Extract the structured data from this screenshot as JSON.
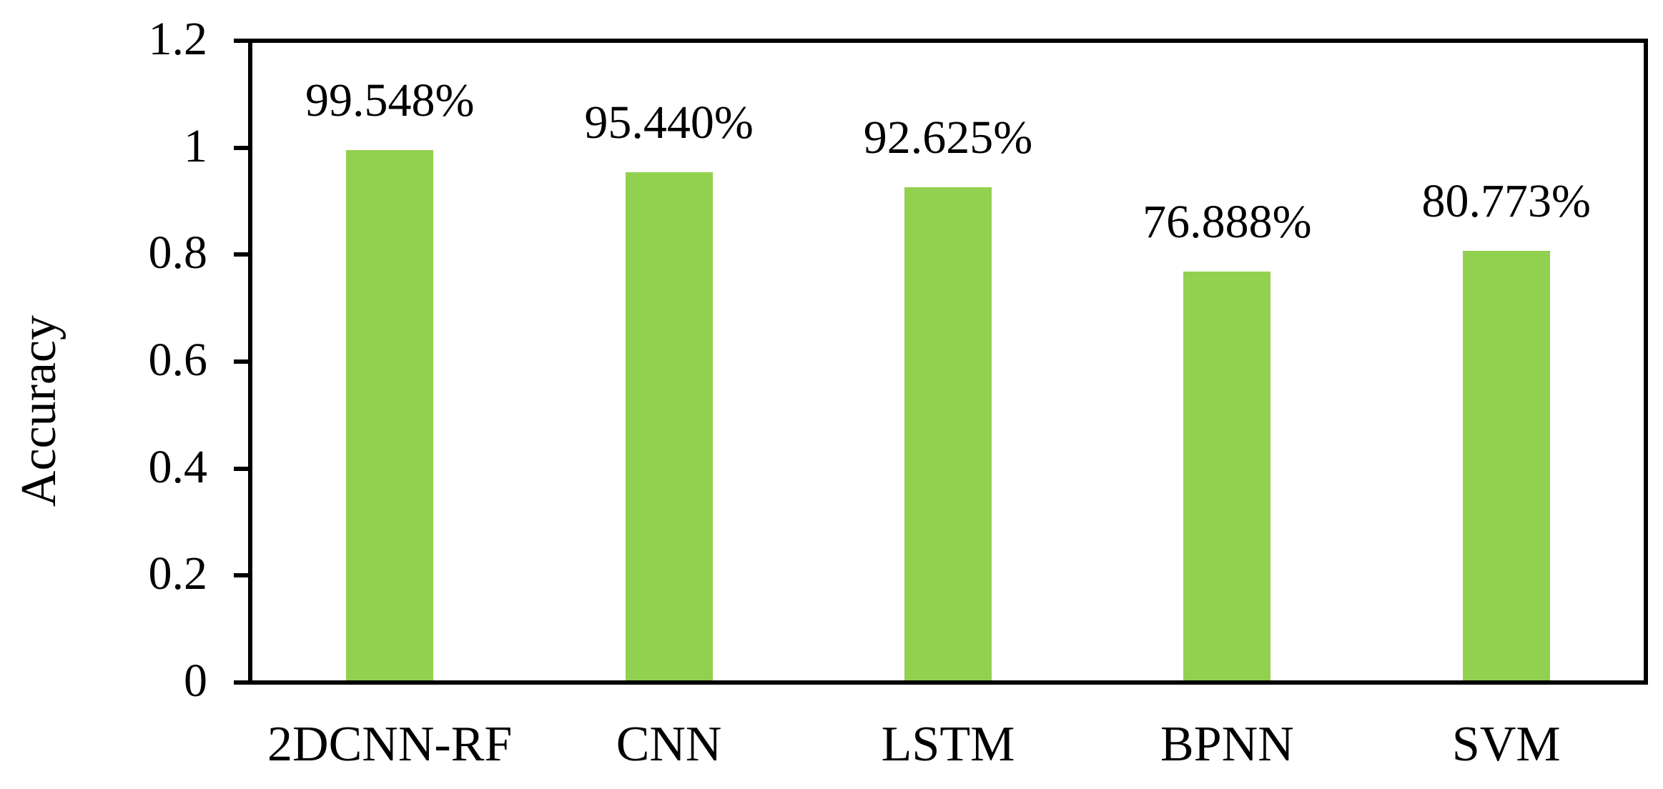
{
  "chart_data": {
    "type": "bar",
    "title": "",
    "xlabel": "",
    "ylabel": "Accuracy",
    "categories": [
      "2DCNN-RF",
      "CNN",
      "LSTM",
      "BPNN",
      "SVM"
    ],
    "series": [
      {
        "name": "Accuracy",
        "values": [
          0.99548,
          0.9544,
          0.92625,
          0.76888,
          0.80773
        ]
      }
    ],
    "bar_labels": [
      "99.548%",
      "95.440%",
      "92.625%",
      "76.888%",
      "80.773%"
    ],
    "y_ticks": [
      0,
      0.2,
      0.4,
      0.6,
      0.8,
      1,
      1.2
    ],
    "y_tick_labels": [
      "0",
      "0.2",
      "0.4",
      "0.6",
      "0.8",
      "1",
      "1.2"
    ],
    "ylim": [
      0,
      1.2
    ],
    "grid": false,
    "legend_position": "none",
    "bar_color": "#92D050",
    "axis_color": "#000000",
    "text_color": "#000000",
    "background_color": "#ffffff"
  }
}
